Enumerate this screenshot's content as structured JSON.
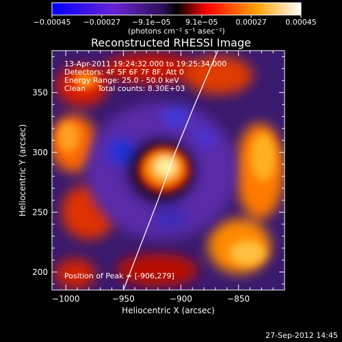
{
  "chart_data": {
    "type": "heatmap",
    "title": "Reconstructed RHESSI Image",
    "xlabel": "Heliocentric X (arcsec)",
    "ylabel": "Heliocentric Y (arcsec)",
    "xlim": [
      -1012,
      -810
    ],
    "ylim": [
      185,
      385
    ],
    "x_ticks": [
      -1000,
      -950,
      -900,
      -850
    ],
    "y_ticks": [
      200,
      250,
      300,
      350
    ],
    "x_tick_labels": [
      "−1000",
      "−950",
      "−900",
      "−850"
    ],
    "y_tick_labels": [
      "200",
      "250",
      "300",
      "350"
    ],
    "colorbar": {
      "range": [
        -0.00045,
        0.00045
      ],
      "ticks": [
        -0.00045,
        -0.00027,
        -9.1e-05,
        9.1e-05,
        0.00027,
        0.00045
      ],
      "tick_labels": [
        "−0.00045",
        "−0.00027",
        "−9.1e−05",
        "9.1e−05",
        "0.00027",
        "0.00045"
      ],
      "unit_label": "(photons cm⁻² s⁻¹ asec⁻²)"
    },
    "info_lines": [
      "13-Apr-2011 19:24:32.000 to 19:25:34.000",
      "Detectors: 4F 5F 6F 7F 8F, Att 0",
      "Energy Range: 25.0 - 50.0 keV",
      "Clean     Total counts: 8.30E+03"
    ],
    "peak_text": "Position of Peak = [-906,279]",
    "peak": [
      -906,
      279
    ],
    "limb_curve": [
      [
        -950,
        185
      ],
      [
        -936,
        220
      ],
      [
        -920,
        260
      ],
      [
        -905,
        300
      ],
      [
        -888,
        340
      ],
      [
        -868,
        385
      ]
    ],
    "colors": {
      "background": "#000000",
      "text": "#ffffff",
      "limb": "#ffffff"
    }
  },
  "footer": {
    "date": "27-Sep-2012 14:45"
  }
}
